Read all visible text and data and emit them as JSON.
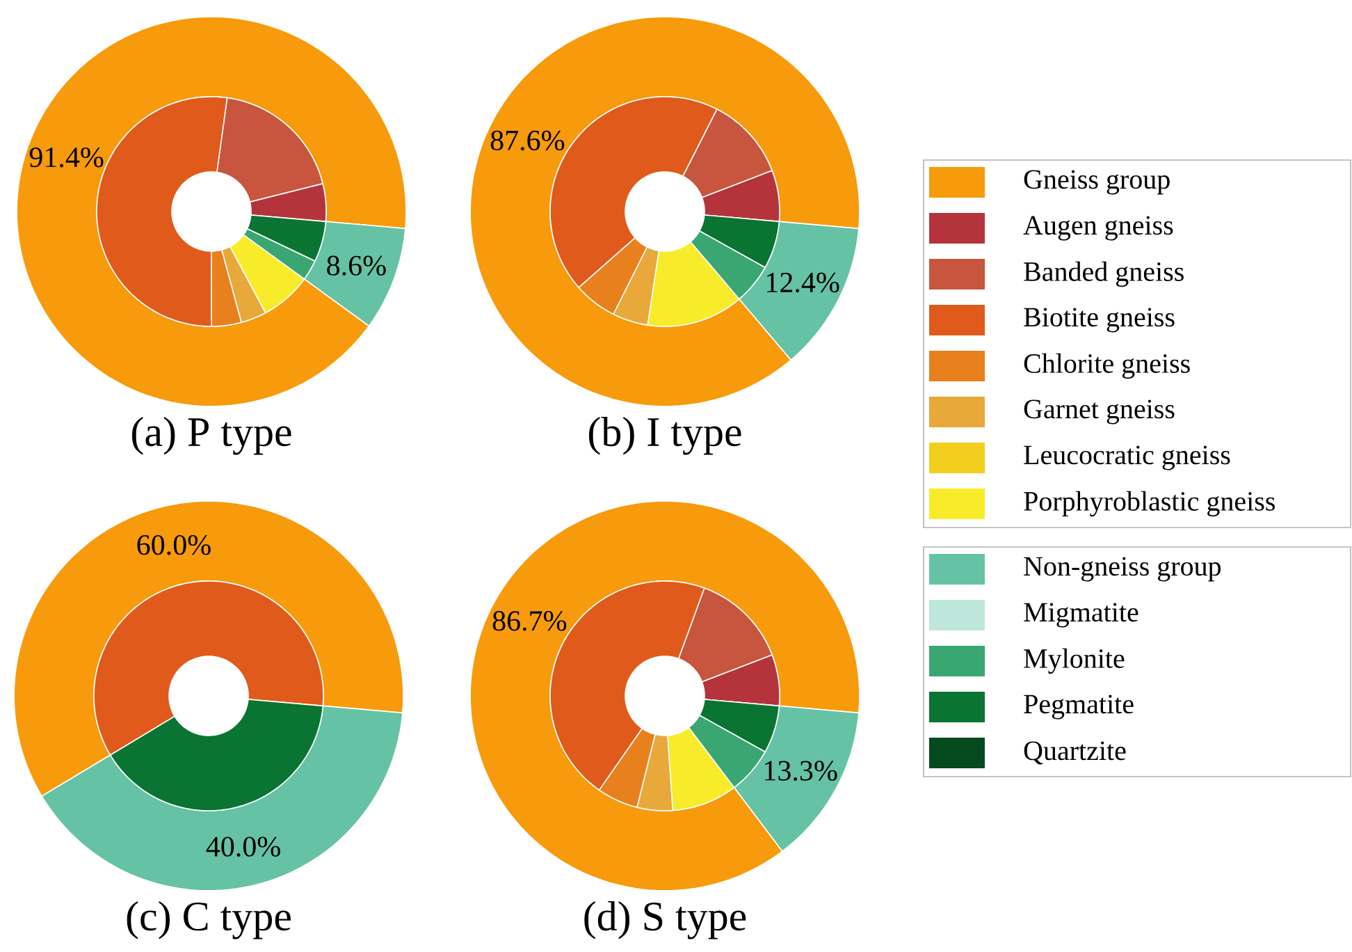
{
  "chart_data": [
    {
      "type": "donut",
      "title": "(a) P type",
      "categories": [
        null,
        null,
        null,
        null,
        null,
        null,
        null,
        null,
        null,
        null,
        null,
        null,
        null
      ],
      "colors": [
        "#f79a0b",
        "#b5343c",
        "#c8553d",
        "#e05a1b",
        "#e8801e",
        "#e9a83a",
        "#f2cf1d",
        "#f8ec2a",
        "#66c2a5",
        "#bfe6da",
        "#3aa672",
        "#0a7432",
        "#054a1f"
      ],
      "series": [
        {
          "values": [
            91.4,
            null,
            null,
            null,
            null,
            null,
            null,
            null,
            8.6,
            null,
            null,
            null,
            null
          ],
          "value_labels": [
            "91.4%",
            null,
            null,
            null,
            null,
            null,
            null,
            null,
            "8.6%",
            null,
            null,
            null,
            null
          ]
        },
        {
          "values": [
            null,
            5.3,
            18.9,
            52.2,
            4.2,
            3.6,
            null,
            7.2,
            null,
            null,
            2.9,
            5.7,
            null
          ]
        }
      ]
    },
    {
      "type": "donut",
      "title": "(b) I type",
      "legend": "right",
      "categories": [
        "Gneiss group",
        "Augen gneiss",
        "Banded gneiss",
        "Biotite gneiss",
        "Chlorite gneiss",
        "Garnet gneiss",
        "Leucocratic gneiss",
        "Porphyroblastic gneiss",
        "Non-gneiss group",
        "Migmatite",
        "Mylonite",
        "Pegmatite",
        "Quartzite"
      ],
      "colors": [
        "#f79a0b",
        "#b5343c",
        "#c8553d",
        "#e05a1b",
        "#e8801e",
        "#e9a83a",
        "#f2cf1d",
        "#f8ec2a",
        "#66c2a5",
        "#bfe6da",
        "#3aa672",
        "#0a7432",
        "#054a1f"
      ],
      "series": [
        {
          "values": [
            87.6,
            null,
            null,
            null,
            null,
            null,
            null,
            null,
            12.4,
            null,
            null,
            null,
            null
          ],
          "value_labels": [
            "87.6%",
            null,
            null,
            null,
            null,
            null,
            null,
            null,
            "12.4%",
            null,
            null,
            null,
            null
          ]
        },
        {
          "values": [
            null,
            7.2,
            11.7,
            44.0,
            6.1,
            5.0,
            null,
            13.6,
            null,
            null,
            5.7,
            6.7,
            null
          ]
        }
      ]
    },
    {
      "type": "donut",
      "title": "(c) C type",
      "categories": [
        null,
        null,
        null,
        null,
        null,
        null,
        null,
        null,
        null,
        null,
        null,
        null,
        null
      ],
      "colors": [
        "#f79a0b",
        "#b5343c",
        "#c8553d",
        "#e05a1b",
        "#e8801e",
        "#e9a83a",
        "#f2cf1d",
        "#f8ec2a",
        "#66c2a5",
        "#bfe6da",
        "#3aa672",
        "#0a7432",
        "#054a1f"
      ],
      "series": [
        {
          "values": [
            60.0,
            null,
            null,
            null,
            null,
            null,
            null,
            null,
            40.0,
            null,
            null,
            null,
            null
          ],
          "value_labels": [
            "60.0%",
            null,
            null,
            null,
            null,
            null,
            null,
            null,
            "40.0%",
            null,
            null,
            null,
            null
          ]
        },
        {
          "values": [
            null,
            null,
            null,
            60.0,
            null,
            null,
            null,
            null,
            null,
            null,
            null,
            40.0,
            null
          ]
        }
      ]
    },
    {
      "type": "donut",
      "title": "(d) S type",
      "categories": [
        null,
        null,
        null,
        null,
        null,
        null,
        null,
        null,
        null,
        null,
        null,
        null,
        null
      ],
      "colors": [
        "#f79a0b",
        "#b5343c",
        "#c8553d",
        "#e05a1b",
        "#e8801e",
        "#e9a83a",
        "#f2cf1d",
        "#f8ec2a",
        "#66c2a5",
        "#bfe6da",
        "#3aa672",
        "#0a7432",
        "#054a1f"
      ],
      "series": [
        {
          "values": [
            86.7,
            null,
            null,
            null,
            null,
            null,
            null,
            null,
            13.3,
            null,
            null,
            null,
            null
          ],
          "value_labels": [
            "86.7%",
            null,
            null,
            null,
            null,
            null,
            null,
            null,
            "13.3%",
            null,
            null,
            null,
            null
          ]
        },
        {
          "values": [
            null,
            7.2,
            13.6,
            45.9,
            5.8,
            5.0,
            null,
            9.2,
            null,
            null,
            6.6,
            6.7,
            null
          ]
        }
      ]
    }
  ]
}
